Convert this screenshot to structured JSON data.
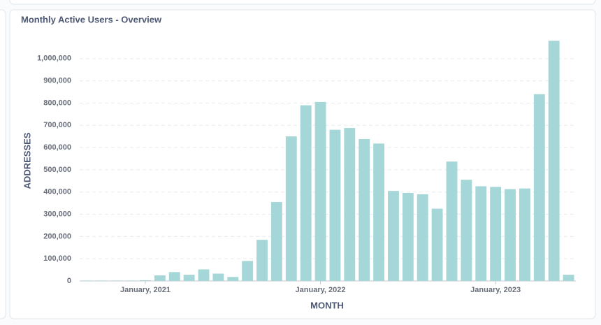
{
  "chart_data": {
    "type": "bar",
    "title": "Monthly Active Users - Overview",
    "x_label": "MONTH",
    "y_label": "ADDRESSES",
    "color": "#a6d7d8",
    "grid": true,
    "categories": [
      null,
      null,
      null,
      null,
      "January, 2021",
      null,
      null,
      null,
      null,
      null,
      null,
      null,
      null,
      null,
      null,
      null,
      "January, 2022",
      null,
      null,
      null,
      null,
      null,
      null,
      null,
      null,
      null,
      null,
      null,
      "January, 2023",
      null,
      null,
      null,
      null,
      null
    ],
    "values": [
      2000,
      2000,
      2000,
      2000,
      3000,
      25000,
      40000,
      28000,
      52000,
      33000,
      18000,
      90000,
      185000,
      355000,
      650000,
      790000,
      805000,
      680000,
      688000,
      638000,
      618000,
      405000,
      396000,
      390000,
      325000,
      537000,
      455000,
      426000,
      423000,
      413000,
      416000,
      840000,
      1080000,
      28000
    ],
    "ylim": [
      0,
      1100000
    ],
    "yticks": [
      0,
      {
        "value": 100000,
        "label": "100,000"
      },
      {
        "value": 200000,
        "label": "200,000"
      },
      {
        "value": 300000,
        "label": "300,000"
      },
      {
        "value": 400000,
        "label": "400,000"
      },
      {
        "value": 500000,
        "label": "500,000"
      },
      {
        "value": 600000,
        "label": "600,000"
      },
      {
        "value": 700000,
        "label": "700,000"
      },
      {
        "value": 800000,
        "label": "800,000"
      },
      {
        "value": 900000,
        "label": "900,000"
      },
      {
        "value": 1000000,
        "label": "1,000,000"
      }
    ]
  }
}
